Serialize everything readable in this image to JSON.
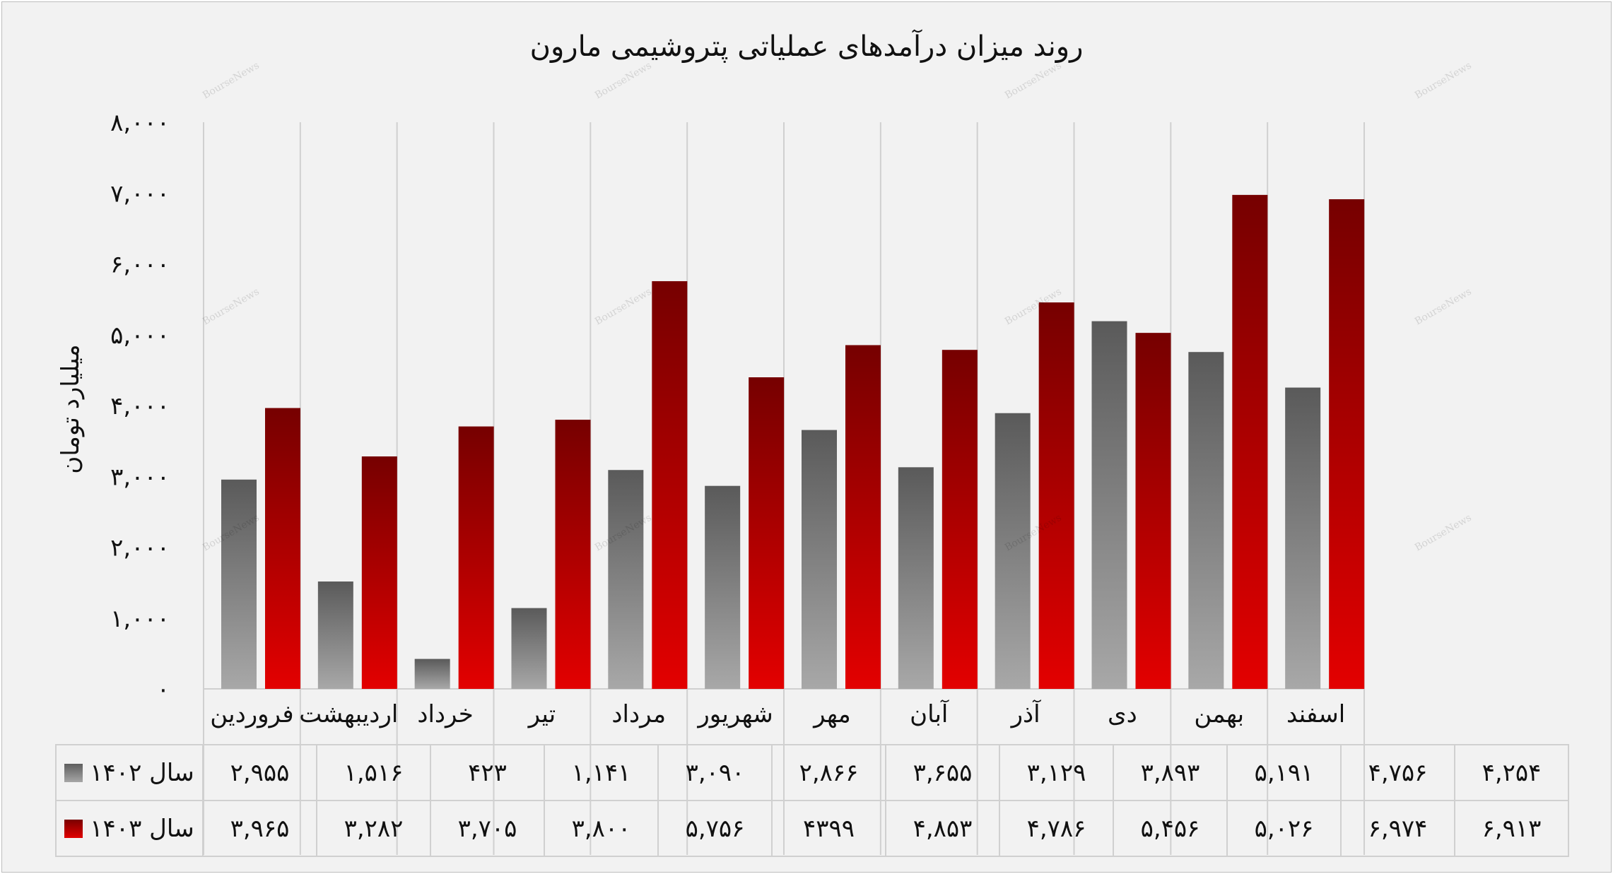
{
  "watermark": "BourseNews",
  "chart_data": {
    "type": "bar",
    "title": "روند میزان درآمدهای عملیاتی پتروشیمی مارون",
    "ylabel": "میلیارد تومان",
    "ylim": [
      0,
      8000
    ],
    "yticks": [
      "۰",
      "۱,۰۰۰",
      "۲,۰۰۰",
      "۳,۰۰۰",
      "۴,۰۰۰",
      "۵,۰۰۰",
      "۶,۰۰۰",
      "۷,۰۰۰",
      "۸,۰۰۰"
    ],
    "grid": true,
    "categories": [
      "فروردین",
      "اردیبهشت",
      "خرداد",
      "تیر",
      "مرداد",
      "شهریور",
      "مهر",
      "آبان",
      "آذر",
      "دی",
      "بهمن",
      "اسفند"
    ],
    "series": [
      {
        "name": "سال ۱۴۰۲",
        "color": "#7f7f7f",
        "values": [
          2955,
          1516,
          423,
          1141,
          3090,
          2866,
          3655,
          3129,
          3893,
          5191,
          4756,
          4254
        ],
        "display": [
          "۲,۹۵۵",
          "۱,۵۱۶",
          "۴۲۳",
          "۱,۱۴۱",
          "۳,۰۹۰",
          "۲,۸۶۶",
          "۳,۶۵۵",
          "۳,۱۲۹",
          "۳,۸۹۳",
          "۵,۱۹۱",
          "۴,۷۵۶",
          "۴,۲۵۴"
        ]
      },
      {
        "name": "سال ۱۴۰۳",
        "color": "#c00000",
        "values": [
          3965,
          3282,
          3705,
          3800,
          5756,
          4399,
          4853,
          4786,
          5456,
          5026,
          6974,
          6913
        ],
        "display": [
          "۳,۹۶۵",
          "۳,۲۸۲",
          "۳,۷۰۵",
          "۳,۸۰۰",
          "۵,۷۵۶",
          "۴۳۹۹",
          "۴,۸۵۳",
          "۴,۷۸۶",
          "۵,۴۵۶",
          "۵,۰۲۶",
          "۶,۹۷۴",
          "۶,۹۱۳"
        ]
      }
    ],
    "legend": "data-table"
  }
}
